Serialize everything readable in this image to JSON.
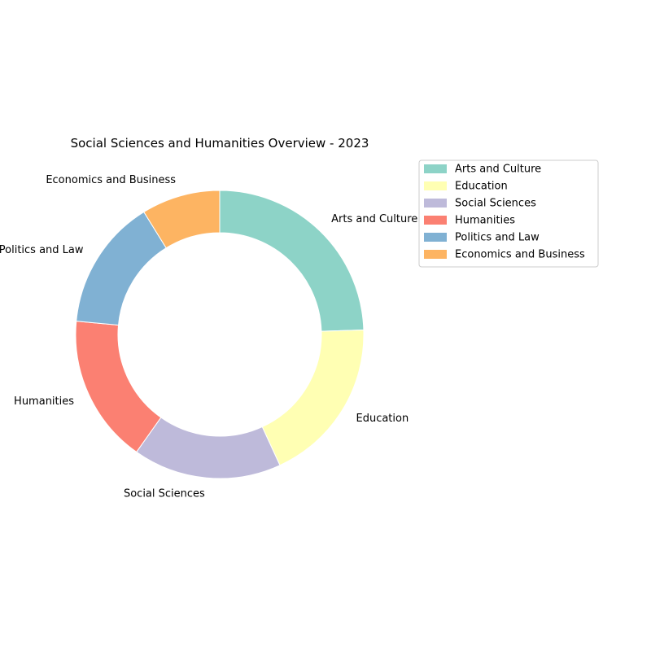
{
  "chart_data": {
    "type": "pie",
    "title": "Social Sciences and Humanities Overview - 2023",
    "categories": [
      "Arts and Culture",
      "Education",
      "Social Sciences",
      "Humanities",
      "Politics and Law",
      "Economics and Business"
    ],
    "values": [
      25,
      19,
      17,
      17,
      15,
      9
    ],
    "colors": [
      "#8dd3c7",
      "#ffffb3",
      "#bebada",
      "#fb8072",
      "#80b1d3",
      "#fdb462"
    ],
    "donut": true,
    "start_angle": 90,
    "direction": "clockwise",
    "legend": {
      "placement": "top-right",
      "entries": [
        "Arts and Culture",
        "Education",
        "Social Sciences",
        "Humanities",
        "Politics and Law",
        "Economics and Business"
      ]
    }
  }
}
